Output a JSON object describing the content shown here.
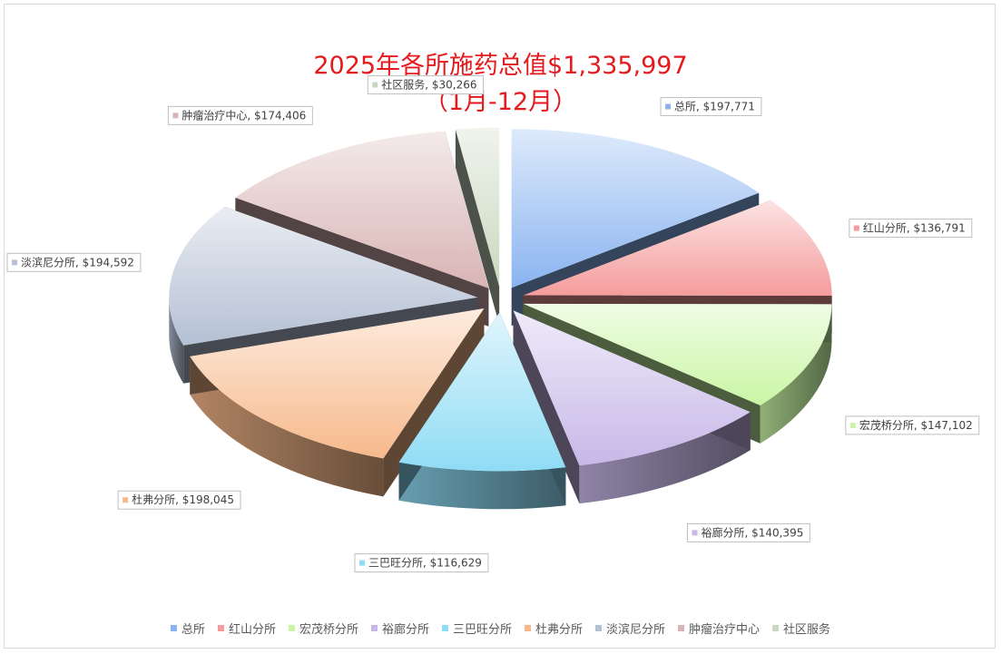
{
  "chart_data": {
    "type": "pie",
    "title_line1": "2025年各所施药总值$1,335,997",
    "title_line2": "（1月-12月）",
    "currency_prefix": "$",
    "legend_position": "bottom",
    "slices": [
      {
        "name": "总所",
        "value": 197771,
        "label": "总所, $197,771",
        "color": "#8ab4f0"
      },
      {
        "name": "红山分所",
        "value": 136791,
        "label": "红山分所, $136,791",
        "color": "#f59c9c"
      },
      {
        "name": "宏茂桥分所",
        "value": 147102,
        "label": "宏茂桥分所, $147,102",
        "color": "#c9f5a4"
      },
      {
        "name": "裕廊分所",
        "value": 140395,
        "label": "裕廊分所, $140,395",
        "color": "#c7b8e8"
      },
      {
        "name": "三巴旺分所",
        "value": 116629,
        "label": "三巴旺分所, $116,629",
        "color": "#8fdcf5"
      },
      {
        "name": "杜弗分所",
        "value": 198045,
        "label": "杜弗分所, $198,045",
        "color": "#f7b98b"
      },
      {
        "name": "淡滨尼分所",
        "value": 194592,
        "label": "淡滨尼分所, $194,592",
        "color": "#b4c0d4"
      },
      {
        "name": "肿瘤治疗中心",
        "value": 174406,
        "label": "肿瘤治疗中心, $174,406",
        "color": "#d9b4b4"
      },
      {
        "name": "社区服务",
        "value": 30266,
        "label": "社区服务, $30,266",
        "color": "#c9d8bf"
      }
    ]
  }
}
